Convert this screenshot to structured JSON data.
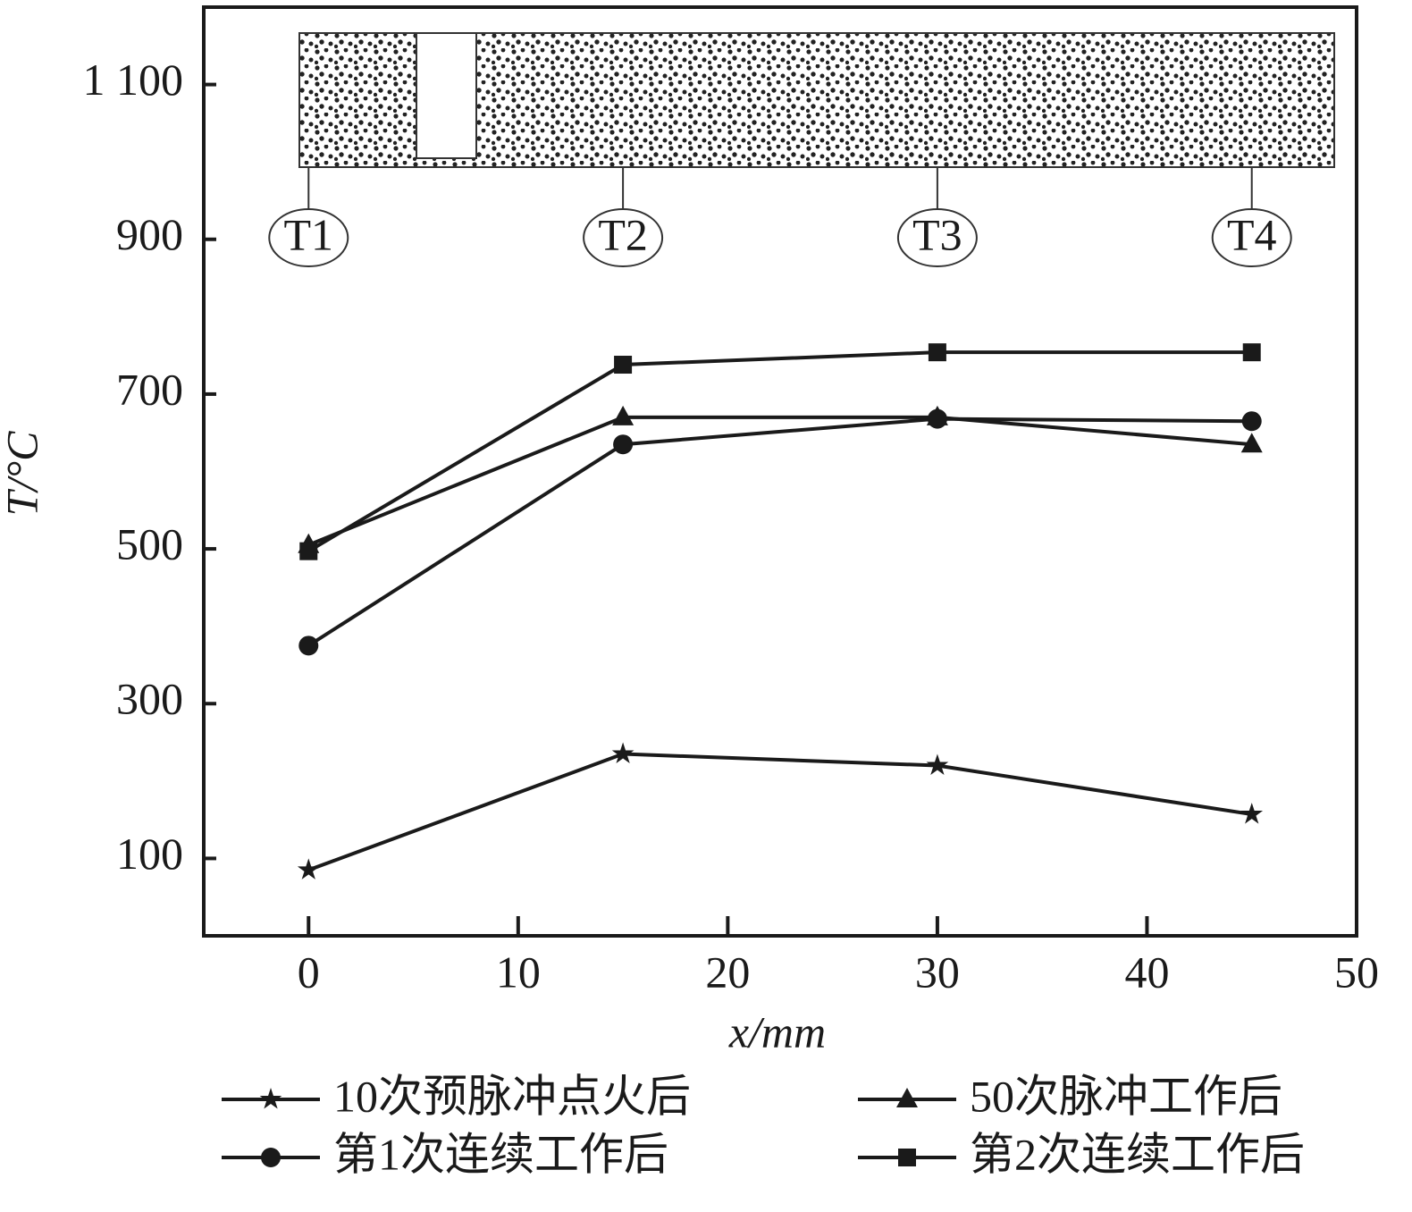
{
  "chart_data": {
    "type": "line",
    "x_label": "x/mm",
    "y_label": "T/°C",
    "xlim": [
      -5,
      50
    ],
    "xticks": [
      0,
      10,
      20,
      30,
      40,
      50
    ],
    "ylim": [
      0,
      1200
    ],
    "yticks": [
      100,
      300,
      500,
      700,
      900,
      {
        "value": 1100,
        "label": "1 100"
      }
    ],
    "x": [
      0,
      15,
      30,
      45
    ],
    "annotations": [
      "T1",
      "T2",
      "T3",
      "T4"
    ],
    "series": [
      {
        "name": "10次预脉冲点火后",
        "color": "#1a1a1a",
        "marker": "star",
        "values": [
          85,
          235,
          220,
          157
        ]
      },
      {
        "name": "50次脉冲工作后",
        "color": "#1a1a1a",
        "marker": "triangle",
        "values": [
          505,
          670,
          670,
          635
        ]
      },
      {
        "name": "第1次连续工作后",
        "color": "#1a1a1a",
        "marker": "circle",
        "values": [
          375,
          635,
          668,
          665
        ]
      },
      {
        "name": "第2次连续工作后",
        "color": "#1a1a1a",
        "marker": "square",
        "values": [
          497,
          738,
          754,
          754
        ]
      }
    ]
  }
}
